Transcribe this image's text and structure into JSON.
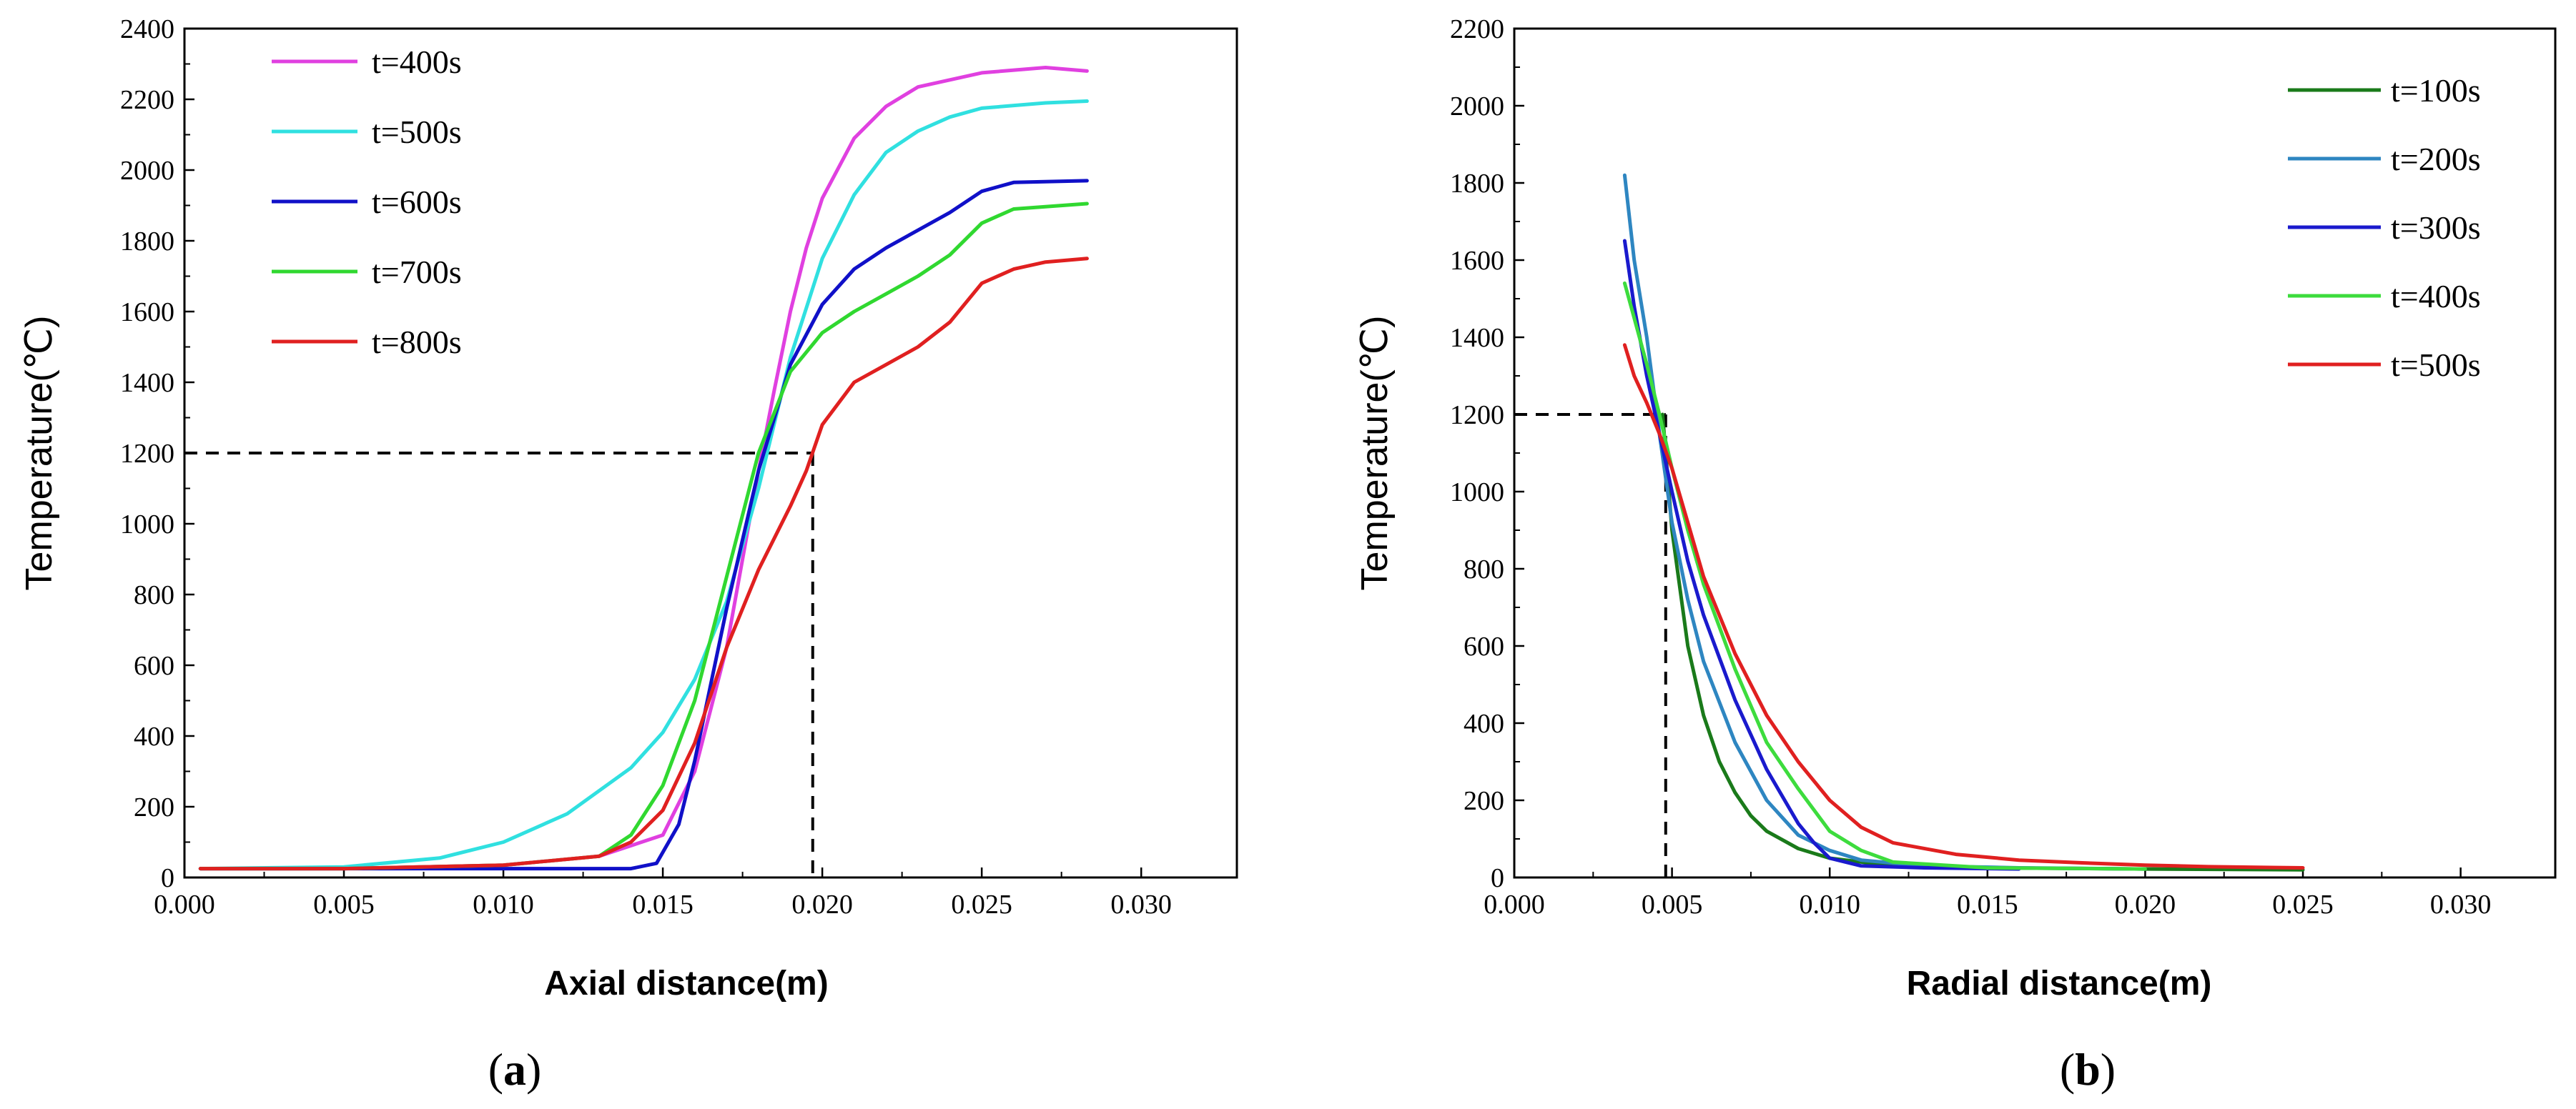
{
  "chart_data": [
    {
      "type": "line",
      "panel": "a",
      "caption_open": "(",
      "caption_letter": "a",
      "caption_close": ")",
      "title": "",
      "xlabel": "Axial distance(m)",
      "ylabel": "Temperature(℃)",
      "xlim": [
        0.0,
        0.033
      ],
      "ylim": [
        0,
        2400
      ],
      "xticks": [
        0.0,
        0.005,
        0.01,
        0.015,
        0.02,
        0.025,
        0.03
      ],
      "xtick_labels": [
        "0.000",
        "0.005",
        "0.010",
        "0.015",
        "0.020",
        "0.025",
        "0.030"
      ],
      "yticks": [
        0,
        200,
        400,
        600,
        800,
        1000,
        1200,
        1400,
        1600,
        1800,
        2000,
        2200,
        2400
      ],
      "ytick_labels": [
        "0",
        "200",
        "400",
        "600",
        "800",
        "1000",
        "1200",
        "1400",
        "1600",
        "1800",
        "2000",
        "2200",
        "2400"
      ],
      "legend_position": "top-left",
      "reference_line": {
        "x": 0.0197,
        "y": 1200
      },
      "series": [
        {
          "name": "t=400s",
          "color": "#e040e0",
          "x": [
            0.0005,
            0.005,
            0.01,
            0.013,
            0.015,
            0.016,
            0.017,
            0.018,
            0.0185,
            0.019,
            0.0195,
            0.02,
            0.021,
            0.022,
            0.023,
            0.025,
            0.027,
            0.0283
          ],
          "y": [
            25,
            25,
            35,
            60,
            120,
            300,
            650,
            1150,
            1380,
            1600,
            1780,
            1920,
            2090,
            2180,
            2235,
            2275,
            2290,
            2280
          ]
        },
        {
          "name": "t=500s",
          "color": "#30e0e0",
          "x": [
            0.0005,
            0.005,
            0.008,
            0.01,
            0.012,
            0.014,
            0.015,
            0.016,
            0.017,
            0.018,
            0.019,
            0.02,
            0.021,
            0.022,
            0.023,
            0.024,
            0.025,
            0.027,
            0.0283
          ],
          "y": [
            25,
            30,
            55,
            100,
            180,
            310,
            410,
            560,
            780,
            1100,
            1470,
            1750,
            1930,
            2050,
            2110,
            2150,
            2175,
            2190,
            2195
          ]
        },
        {
          "name": "t=600s",
          "color": "#1010c8",
          "x": [
            0.0005,
            0.005,
            0.01,
            0.014,
            0.0148,
            0.0155,
            0.016,
            0.017,
            0.018,
            0.019,
            0.02,
            0.021,
            0.022,
            0.023,
            0.024,
            0.025,
            0.026,
            0.0283
          ],
          "y": [
            25,
            25,
            25,
            25,
            40,
            150,
            330,
            760,
            1150,
            1450,
            1620,
            1720,
            1780,
            1830,
            1880,
            1940,
            1965,
            1970
          ]
        },
        {
          "name": "t=700s",
          "color": "#30d830",
          "x": [
            0.0005,
            0.005,
            0.01,
            0.013,
            0.014,
            0.015,
            0.016,
            0.017,
            0.018,
            0.019,
            0.02,
            0.021,
            0.022,
            0.023,
            0.024,
            0.025,
            0.026,
            0.0283
          ],
          "y": [
            25,
            25,
            35,
            60,
            120,
            260,
            500,
            850,
            1200,
            1430,
            1540,
            1600,
            1650,
            1700,
            1760,
            1850,
            1890,
            1905
          ]
        },
        {
          "name": "t=800s",
          "color": "#e02020",
          "x": [
            0.0005,
            0.005,
            0.01,
            0.013,
            0.014,
            0.015,
            0.016,
            0.017,
            0.018,
            0.019,
            0.0195,
            0.02,
            0.021,
            0.022,
            0.023,
            0.024,
            0.025,
            0.026,
            0.027,
            0.0283
          ],
          "y": [
            25,
            25,
            35,
            60,
            100,
            190,
            380,
            650,
            870,
            1050,
            1150,
            1280,
            1400,
            1450,
            1500,
            1570,
            1680,
            1720,
            1740,
            1750
          ]
        }
      ]
    },
    {
      "type": "line",
      "panel": "b",
      "caption_open": "(",
      "caption_letter": "b",
      "caption_close": ")",
      "title": "",
      "xlabel": "Radial distance(m)",
      "ylabel": "Temperature(℃)",
      "xlim": [
        0.0,
        0.033
      ],
      "ylim": [
        0,
        2200
      ],
      "xticks": [
        0.0,
        0.005,
        0.01,
        0.015,
        0.02,
        0.025,
        0.03
      ],
      "xtick_labels": [
        "0.000",
        "0.005",
        "0.010",
        "0.015",
        "0.020",
        "0.025",
        "0.030"
      ],
      "yticks": [
        0,
        200,
        400,
        600,
        800,
        1000,
        1200,
        1400,
        1600,
        1800,
        2000,
        2200
      ],
      "ytick_labels": [
        "0",
        "200",
        "400",
        "600",
        "800",
        "1000",
        "1200",
        "1400",
        "1600",
        "1800",
        "2000",
        "2200"
      ],
      "legend_position": "top-right",
      "reference_line": {
        "x": 0.0048,
        "y": 1200
      },
      "series": [
        {
          "name": "t=100s",
          "color": "#1a7a1a",
          "x": [
            0.0047,
            0.005,
            0.0055,
            0.006,
            0.0065,
            0.007,
            0.0075,
            0.008,
            0.009,
            0.01,
            0.012,
            0.015,
            0.02,
            0.025
          ],
          "y": [
            1200,
            900,
            600,
            420,
            300,
            220,
            160,
            120,
            75,
            50,
            30,
            25,
            22,
            20
          ]
        },
        {
          "name": "t=200s",
          "color": "#2e86c1",
          "x": [
            0.0035,
            0.0038,
            0.0042,
            0.0046,
            0.005,
            0.0055,
            0.006,
            0.007,
            0.008,
            0.009,
            0.01,
            0.011,
            0.013,
            0.016,
            0.02
          ],
          "y": [
            1820,
            1600,
            1400,
            1150,
            920,
            720,
            560,
            350,
            200,
            110,
            70,
            45,
            30,
            25,
            22
          ]
        },
        {
          "name": "t=300s",
          "color": "#1a1acd",
          "x": [
            0.0035,
            0.0038,
            0.0042,
            0.0046,
            0.005,
            0.0055,
            0.006,
            0.007,
            0.008,
            0.009,
            0.0095,
            0.01,
            0.011,
            0.013,
            0.016
          ],
          "y": [
            1650,
            1480,
            1300,
            1150,
            1000,
            820,
            680,
            460,
            280,
            140,
            90,
            50,
            30,
            25,
            22
          ]
        },
        {
          "name": "t=400s",
          "color": "#3ddc3d",
          "x": [
            0.0035,
            0.0038,
            0.0042,
            0.0046,
            0.005,
            0.0055,
            0.006,
            0.007,
            0.008,
            0.009,
            0.01,
            0.011,
            0.012,
            0.015,
            0.02
          ],
          "y": [
            1540,
            1450,
            1330,
            1200,
            1060,
            900,
            760,
            540,
            350,
            230,
            120,
            70,
            40,
            25,
            22
          ]
        },
        {
          "name": "t=500s",
          "color": "#e02020",
          "x": [
            0.0035,
            0.0038,
            0.0042,
            0.0046,
            0.005,
            0.0055,
            0.006,
            0.007,
            0.008,
            0.009,
            0.01,
            0.011,
            0.012,
            0.014,
            0.016,
            0.018,
            0.02,
            0.022,
            0.025
          ],
          "y": [
            1380,
            1300,
            1230,
            1150,
            1060,
            920,
            780,
            580,
            420,
            300,
            200,
            130,
            90,
            60,
            45,
            38,
            32,
            28,
            25
          ]
        }
      ]
    }
  ]
}
